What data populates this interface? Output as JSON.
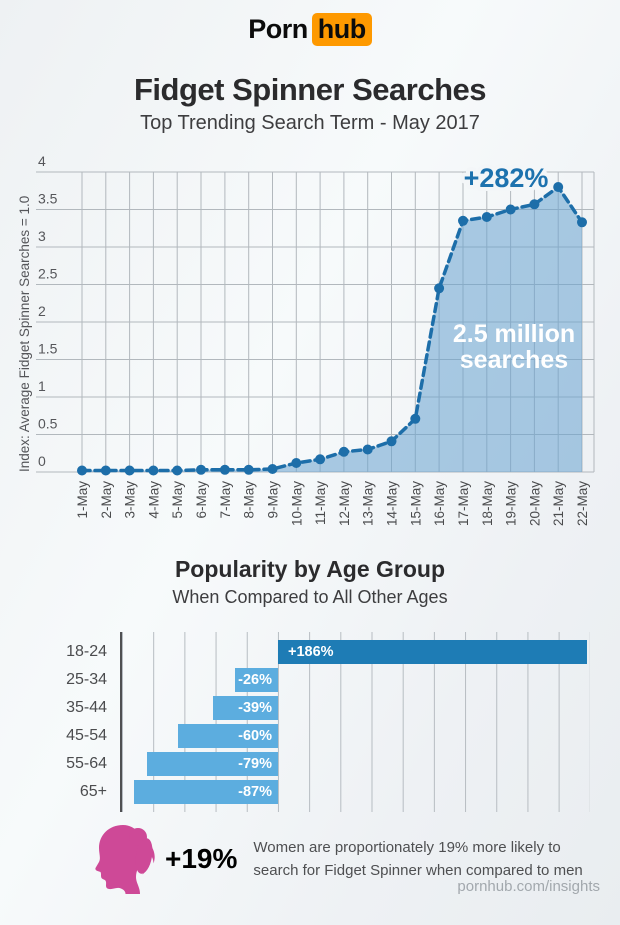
{
  "header": {
    "logo_porn": "Porn",
    "logo_hub": "hub",
    "title": "Fidget Spinner Searches",
    "subtitle": "Top Trending Search Term - May 2017"
  },
  "colors": {
    "brand_orange": "#fe9900",
    "line_blue": "#1d6ea9",
    "area_fill": "rgba(104,162,207,0.55)",
    "annotation_blue": "#1d72ae",
    "bar_positive": "#1e7cb5",
    "bar_negative": "#5caddf",
    "grid_gray": "#b2b8bd",
    "pink": "#ce4997"
  },
  "chart_data": [
    {
      "type": "area",
      "title": "",
      "xlabel": "",
      "ylabel": "Index: Average Fidget Spinner Searches = 1.0",
      "ylim": [
        0,
        4
      ],
      "yticks": [
        4,
        3.5,
        3,
        2.5,
        2,
        1.5,
        1,
        0.5,
        0
      ],
      "grid": true,
      "line_style": "dashed",
      "marker": "circle",
      "x": [
        "1-May",
        "2-May",
        "3-May",
        "4-May",
        "5-May",
        "6-May",
        "7-May",
        "8-May",
        "9-May",
        "10-May",
        "11-May",
        "12-May",
        "13-May",
        "14-May",
        "15-May",
        "16-May",
        "17-May",
        "18-May",
        "19-May",
        "20-May",
        "21-May",
        "22-May"
      ],
      "values": [
        0.02,
        0.02,
        0.02,
        0.02,
        0.02,
        0.03,
        0.03,
        0.03,
        0.04,
        0.12,
        0.17,
        0.27,
        0.3,
        0.41,
        0.71,
        2.45,
        3.35,
        3.4,
        3.5,
        3.57,
        3.8,
        3.33
      ],
      "annotations": [
        {
          "text": "+282%",
          "at_x": "21-May"
        },
        {
          "text": "2.5 million searches",
          "lines": [
            "2.5 million",
            "searches"
          ]
        }
      ]
    },
    {
      "type": "bar",
      "title": "Popularity by Age Group",
      "subtitle": "When Compared to All Other Ages",
      "orientation": "horizontal",
      "categories": [
        "18-24",
        "25-34",
        "35-44",
        "45-54",
        "55-64",
        "65+"
      ],
      "values": [
        186,
        -26,
        -39,
        -60,
        -79,
        -87
      ],
      "labels": [
        "+186%",
        "-26%",
        "-39%",
        "-60%",
        "-79%",
        "-87%"
      ],
      "xlim": [
        -93,
        186
      ],
      "grid": true
    }
  ],
  "note": {
    "stat": "+19%",
    "lines": [
      "Women are proportionately 19% more likely to",
      "search for Fidget Spinner when compared to men"
    ]
  },
  "footer": {
    "url": "pornhub.com/insights"
  }
}
